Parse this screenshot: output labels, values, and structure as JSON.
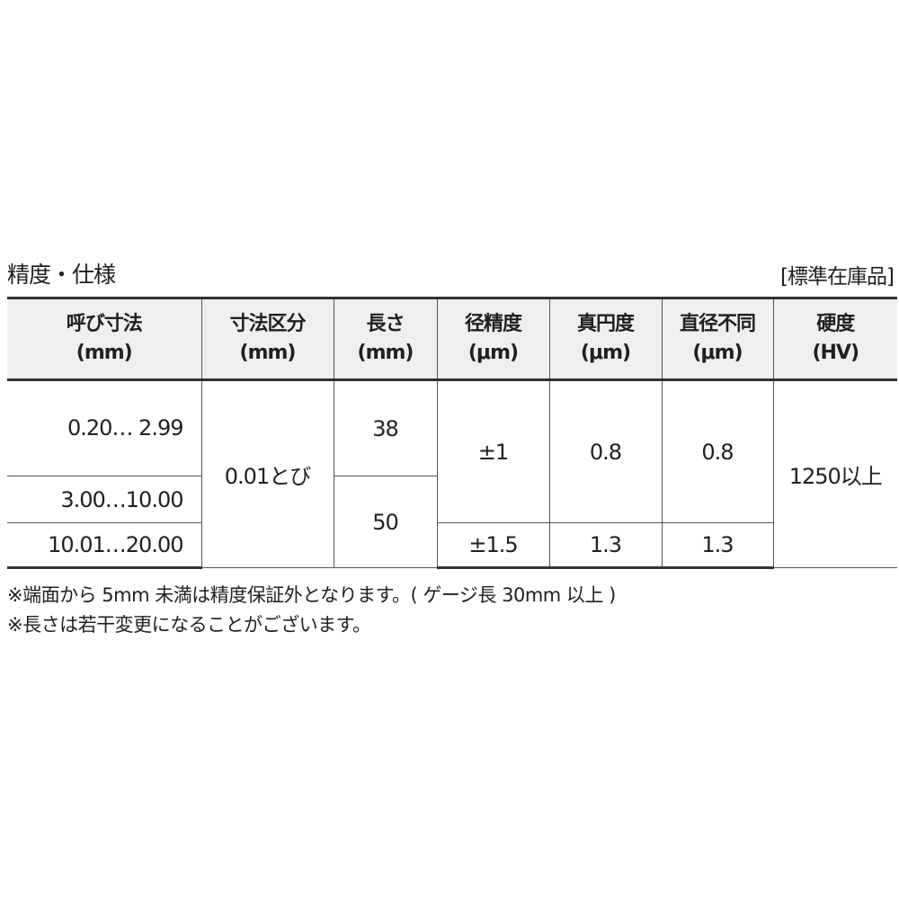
{
  "title": "精度・仕様",
  "stock_label": "[標準在庫品]",
  "table": {
    "headers": [
      {
        "line1": "呼び寸法",
        "line2": "(mm)"
      },
      {
        "line1": "寸法区分",
        "line2": "(mm)"
      },
      {
        "line1": "長さ",
        "line2": "(mm)"
      },
      {
        "line1": "径精度",
        "line2": "(μm)"
      },
      {
        "line1": "真円度",
        "line2": "(μm)"
      },
      {
        "line1": "直径不同",
        "line2": "(μm)"
      },
      {
        "line1": "硬度",
        "line2": "(HV)"
      }
    ],
    "nominal": [
      "0.20… 2.99",
      "3.00…10.00",
      "10.01…20.00"
    ],
    "increment": "0.01とび",
    "length": [
      "38",
      "50"
    ],
    "diameter_precision": [
      "±1",
      "±1.5"
    ],
    "roundness": [
      "0.8",
      "1.3"
    ],
    "diameter_variation": [
      "0.8",
      "1.3"
    ],
    "hardness": "1250以上"
  },
  "notes": [
    "※端面から 5mm 未満は精度保証外となります。( ゲージ長 30mm 以上 )",
    "※長さは若干変更になることがございます。"
  ]
}
